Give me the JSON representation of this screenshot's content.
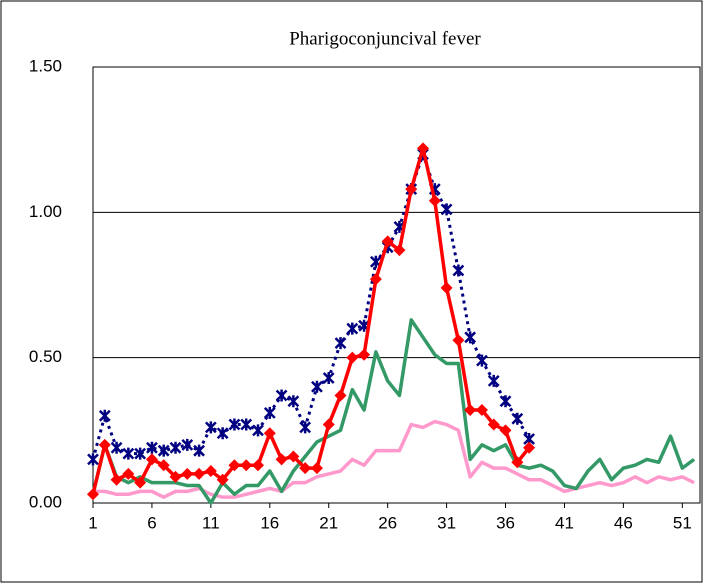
{
  "chart_data": {
    "type": "line",
    "title": "Pharigoconjuncival fever",
    "x": [
      1,
      2,
      3,
      4,
      5,
      6,
      7,
      8,
      9,
      10,
      11,
      12,
      13,
      14,
      15,
      16,
      17,
      18,
      19,
      20,
      21,
      22,
      23,
      24,
      25,
      26,
      27,
      28,
      29,
      30,
      31,
      32,
      33,
      34,
      35,
      36,
      37,
      38,
      39,
      40,
      41,
      42,
      43,
      44,
      45,
      46,
      47,
      48,
      49,
      50,
      51,
      52
    ],
    "xlim": [
      1,
      52.5
    ],
    "xticks": [
      1,
      6,
      11,
      16,
      21,
      26,
      31,
      36,
      41,
      46,
      51
    ],
    "ylim": [
      0,
      1.5
    ],
    "yticks": [
      {
        "value": 0,
        "label": "0.00"
      },
      {
        "value": 0.5,
        "label": "0.50"
      },
      {
        "value": 1,
        "label": "1.00"
      },
      {
        "value": 1.5,
        "label": "1.50"
      }
    ],
    "grid": true,
    "series": [
      {
        "color": "#ff99cc",
        "marker": "none",
        "dash": false,
        "values": [
          0.04,
          0.04,
          0.03,
          0.03,
          0.04,
          0.04,
          0.02,
          0.04,
          0.04,
          0.05,
          0.03,
          0.02,
          0.02,
          0.03,
          0.04,
          0.05,
          0.04,
          0.07,
          0.07,
          0.09,
          0.1,
          0.11,
          0.15,
          0.13,
          0.18,
          0.18,
          0.18,
          0.27,
          0.26,
          0.28,
          0.27,
          0.25,
          0.09,
          0.14,
          0.12,
          0.12,
          0.1,
          0.08,
          0.08,
          0.06,
          0.04,
          0.05,
          0.06,
          0.07,
          0.06,
          0.07,
          0.09,
          0.07,
          0.09,
          0.08,
          0.09,
          0.07
        ]
      },
      {
        "color": "#339966",
        "marker": "none",
        "dash": false,
        "values": [
          0.03,
          0.2,
          0.09,
          0.07,
          0.09,
          0.07,
          0.07,
          0.07,
          0.06,
          0.06,
          0.0,
          0.07,
          0.03,
          0.06,
          0.06,
          0.11,
          0.04,
          0.11,
          0.16,
          0.21,
          0.23,
          0.25,
          0.39,
          0.32,
          0.52,
          0.42,
          0.37,
          0.63,
          0.57,
          0.51,
          0.48,
          0.48,
          0.15,
          0.2,
          0.18,
          0.2,
          0.13,
          0.12,
          0.13,
          0.11,
          0.06,
          0.05,
          0.11,
          0.15,
          0.08,
          0.12,
          0.13,
          0.15,
          0.14,
          0.23,
          0.12,
          0.15
        ]
      },
      {
        "color": "#000080",
        "marker": "asterisk",
        "dash": true,
        "values": [
          0.15,
          0.3,
          0.19,
          0.17,
          0.17,
          0.19,
          0.18,
          0.19,
          0.2,
          0.18,
          0.26,
          0.24,
          0.27,
          0.27,
          0.25,
          0.31,
          0.37,
          0.35,
          0.26,
          0.4,
          0.43,
          0.55,
          0.6,
          0.61,
          0.83,
          0.88,
          0.95,
          1.08,
          1.2,
          1.08,
          1.01,
          0.8,
          0.57,
          0.49,
          0.42,
          0.35,
          0.29,
          0.22,
          null,
          null,
          null,
          null,
          null,
          null,
          null,
          null,
          null,
          null,
          null,
          null,
          null,
          null
        ]
      },
      {
        "color": "#ff0000",
        "marker": "diamond",
        "dash": false,
        "values": [
          0.03,
          0.2,
          0.08,
          0.1,
          0.07,
          0.15,
          0.13,
          0.09,
          0.1,
          0.1,
          0.11,
          0.08,
          0.13,
          0.13,
          0.13,
          0.24,
          0.15,
          0.16,
          0.12,
          0.12,
          0.27,
          0.37,
          0.5,
          0.51,
          0.77,
          0.9,
          0.87,
          1.08,
          1.22,
          1.04,
          0.74,
          0.56,
          0.32,
          0.32,
          0.27,
          0.25,
          0.14,
          0.19,
          null,
          null,
          null,
          null,
          null,
          null,
          null,
          null,
          null,
          null,
          null,
          null,
          null,
          null
        ]
      }
    ]
  }
}
